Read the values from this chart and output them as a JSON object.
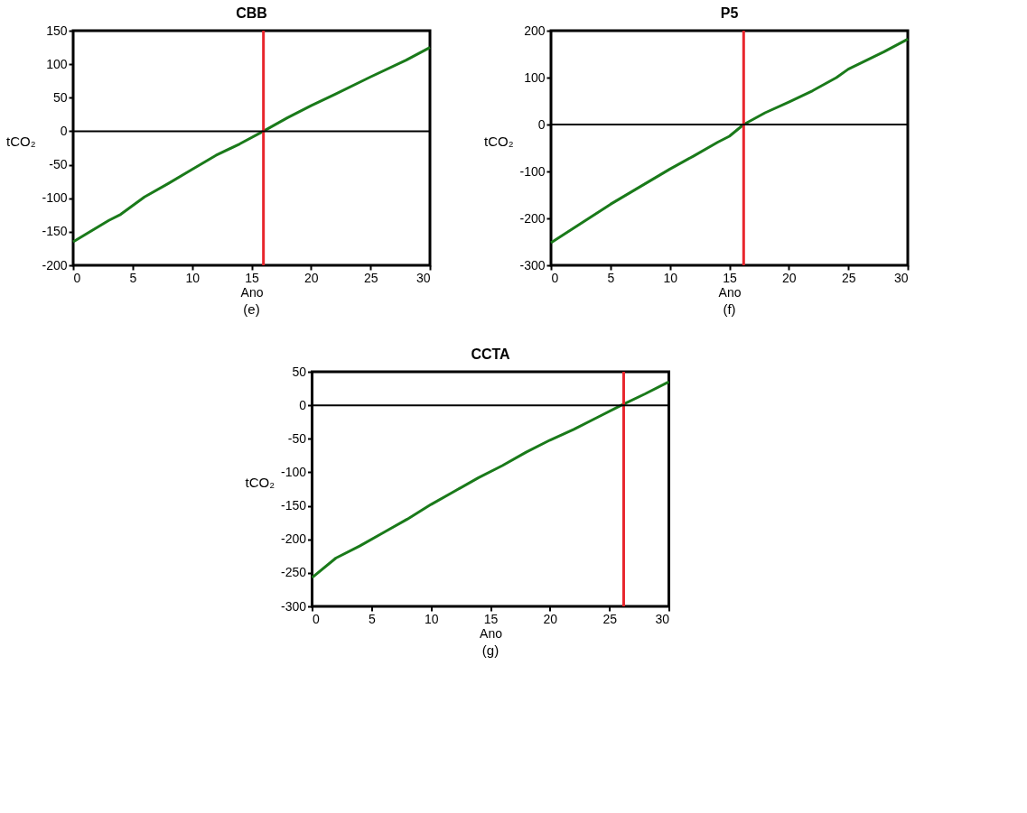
{
  "chart_data": [
    {
      "type": "line",
      "title": "CBB",
      "xlabel": "Ano",
      "ylabel": "tCO₂",
      "annotations": [
        "(e)"
      ],
      "xlim": [
        0,
        30
      ],
      "xticks": [
        0,
        5,
        10,
        15,
        20,
        25,
        30
      ],
      "ylim": [
        -200,
        150
      ],
      "yticks": [
        -200,
        -150,
        -100,
        -50,
        0,
        50,
        100,
        150
      ],
      "series": [
        {
          "color": "#1a7a1a",
          "x": [
            0,
            3,
            4,
            6,
            8,
            10,
            12,
            14,
            16,
            18,
            20,
            22,
            25,
            28,
            30
          ],
          "values": [
            -165,
            -133,
            -124,
            -98,
            -78,
            -57,
            -36,
            -19,
            0,
            20,
            38,
            55,
            81,
            106,
            125
          ]
        }
      ],
      "ref_lines": [
        {
          "axis": "x",
          "value": 16,
          "color": "#e8262d"
        },
        {
          "axis": "y",
          "value": 0,
          "color": "#000000"
        }
      ]
    },
    {
      "type": "line",
      "title": "P5",
      "xlabel": "Ano",
      "ylabel": "tCO₂",
      "annotations": [
        "(f)"
      ],
      "xlim": [
        0,
        30
      ],
      "xticks": [
        0,
        5,
        10,
        15,
        20,
        25,
        30
      ],
      "ylim": [
        -300,
        200
      ],
      "yticks": [
        -300,
        -200,
        -100,
        0,
        100,
        200
      ],
      "series": [
        {
          "color": "#1a7a1a",
          "x": [
            0,
            5,
            10,
            12,
            14,
            15,
            16.2,
            18,
            20,
            22,
            24,
            25,
            28,
            30
          ],
          "values": [
            -252,
            -170,
            -95,
            -67,
            -38,
            -25,
            0,
            25,
            48,
            72,
            100,
            118,
            155,
            182
          ]
        }
      ],
      "ref_lines": [
        {
          "axis": "x",
          "value": 16.2,
          "color": "#e8262d"
        },
        {
          "axis": "y",
          "value": 0,
          "color": "#000000"
        }
      ]
    },
    {
      "type": "line",
      "title": "CCTA",
      "xlabel": "Ano",
      "ylabel": "tCO₂",
      "annotations": [
        "(g)"
      ],
      "xlim": [
        0,
        30
      ],
      "xticks": [
        0,
        5,
        10,
        15,
        20,
        25,
        30
      ],
      "ylim": [
        -300,
        50
      ],
      "yticks": [
        -300,
        -250,
        -200,
        -150,
        -100,
        -50,
        0,
        50
      ],
      "series": [
        {
          "color": "#1a7a1a",
          "x": [
            0,
            2,
            4,
            6,
            8,
            10,
            12,
            14,
            16,
            18,
            20,
            22,
            24,
            26,
            28,
            30
          ],
          "values": [
            -257,
            -228,
            -210,
            -190,
            -170,
            -148,
            -128,
            -108,
            -90,
            -70,
            -52,
            -36,
            -18,
            0,
            17,
            35
          ]
        }
      ],
      "ref_lines": [
        {
          "axis": "x",
          "value": 26.2,
          "color": "#e8262d"
        },
        {
          "axis": "y",
          "value": 0,
          "color": "#000000"
        }
      ]
    }
  ]
}
